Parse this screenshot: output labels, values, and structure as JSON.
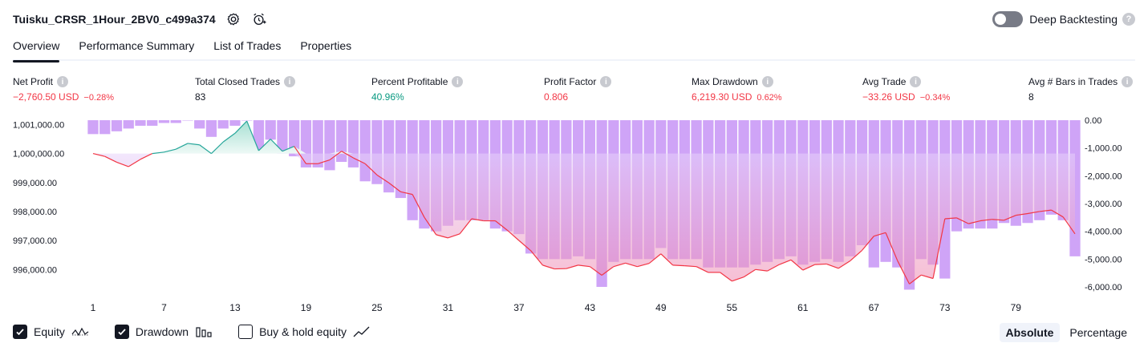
{
  "header": {
    "title": "Tuisku_CRSR_1Hour_2BV0_c499a374",
    "deep_backtesting_label": "Deep Backtesting",
    "help_glyph": "?"
  },
  "tabs": [
    "Overview",
    "Performance Summary",
    "List of Trades",
    "Properties"
  ],
  "metrics": [
    {
      "label": "Net Profit",
      "value": "−2,760.50 USD",
      "pct": "−0.28%",
      "tone": "neg"
    },
    {
      "label": "Total Closed Trades",
      "value": "83",
      "pct": "",
      "tone": "plain"
    },
    {
      "label": "Percent Profitable",
      "value": "40.96%",
      "pct": "",
      "tone": "pos"
    },
    {
      "label": "Profit Factor",
      "value": "0.806",
      "pct": "",
      "tone": "neg"
    },
    {
      "label": "Max Drawdown",
      "value": "6,219.30 USD",
      "pct": "0.62%",
      "tone": "neg"
    },
    {
      "label": "Avg Trade",
      "value": "−33.26 USD",
      "pct": "−0.34%",
      "tone": "neg"
    },
    {
      "label": "Avg # Bars in Trades",
      "value": "8",
      "pct": "",
      "tone": "plain"
    }
  ],
  "chart_data": {
    "type": "line",
    "x_ticks": [
      "1",
      "7",
      "13",
      "19",
      "25",
      "31",
      "37",
      "43",
      "49",
      "55",
      "61",
      "67",
      "73",
      "79"
    ],
    "x_range": [
      1,
      84
    ],
    "left_axis": {
      "ticks": [
        "1,001,000.00",
        "1,000,000.00",
        "999,000.00",
        "998,000.00",
        "997,000.00",
        "996,000.00"
      ],
      "range": [
        995400,
        1001150
      ]
    },
    "right_axis": {
      "ticks": [
        "0.00",
        "-1,000.00",
        "-2,000.00",
        "-3,000.00",
        "-4,000.00",
        "-5,000.00",
        "-6,000.00"
      ],
      "range": [
        -6000,
        0
      ]
    },
    "series": [
      {
        "name": "Equity",
        "color_up": "#26a69a",
        "color_down": "#f23645",
        "values": [
          1000000,
          999900,
          999700,
          999550,
          999800,
          1000000,
          1000050,
          1000150,
          1000350,
          1000300,
          1000000,
          1000400,
          1000700,
          1001120,
          1000100,
          1000500,
          1000080,
          1000250,
          999650,
          999650,
          999780,
          1000080,
          999850,
          999650,
          999260,
          998990,
          998680,
          998590,
          997800,
          997200,
          997090,
          997230,
          997750,
          997680,
          997680,
          997360,
          997000,
          996650,
          996150,
          996020,
          996030,
          996150,
          996100,
          995800,
          996100,
          996220,
          996100,
          996210,
          996540,
          996150,
          996130,
          996100,
          995900,
          995900,
          995600,
          995740,
          996000,
          995950,
          996170,
          996330,
          995980,
          996170,
          996190,
          996040,
          996300,
          996660,
          997150,
          997270,
          996300,
          995500,
          995810,
          995690,
          997750,
          997780,
          997580,
          997680,
          997730,
          997700,
          997870,
          997930,
          998000,
          998050,
          997810,
          997230
        ]
      },
      {
        "name": "Drawdown",
        "color": "#cfa4f7",
        "values": [
          -500,
          -500,
          -400,
          -300,
          -200,
          -200,
          -100,
          -100,
          0,
          -300,
          -600,
          -300,
          -200,
          0,
          -1100,
          -700,
          -1200,
          -1300,
          -1700,
          -1700,
          -1800,
          -1500,
          -1700,
          -2200,
          -2300,
          -2600,
          -2800,
          -3600,
          -3900,
          -4000,
          -3800,
          -3600,
          -3600,
          -3600,
          -3900,
          -4000,
          -4100,
          -4800,
          -5000,
          -5000,
          -5000,
          -4900,
          -5000,
          -6000,
          -5100,
          -5000,
          -5000,
          -5000,
          -4600,
          -5000,
          -5000,
          -5000,
          -5300,
          -5300,
          -5300,
          -5300,
          -5200,
          -5100,
          -5000,
          -4900,
          -5200,
          -5100,
          -5000,
          -5100,
          -4900,
          -4500,
          -5300,
          -5100,
          -5300,
          -6100,
          -5000,
          -5200,
          -5700,
          -4000,
          -3900,
          -3900,
          -3900,
          -3700,
          -3800,
          -3700,
          -3600,
          -3400,
          -3600,
          -4900
        ]
      }
    ]
  },
  "legend": [
    {
      "label": "Equity",
      "checked": true,
      "icon": "equity-wave-icon"
    },
    {
      "label": "Drawdown",
      "checked": true,
      "icon": "drawdown-bars-icon"
    },
    {
      "label": "Buy & hold equity",
      "checked": false,
      "icon": "buy-hold-line-icon"
    }
  ],
  "modes": [
    {
      "label": "Absolute",
      "active": true
    },
    {
      "label": "Percentage",
      "active": false
    }
  ]
}
